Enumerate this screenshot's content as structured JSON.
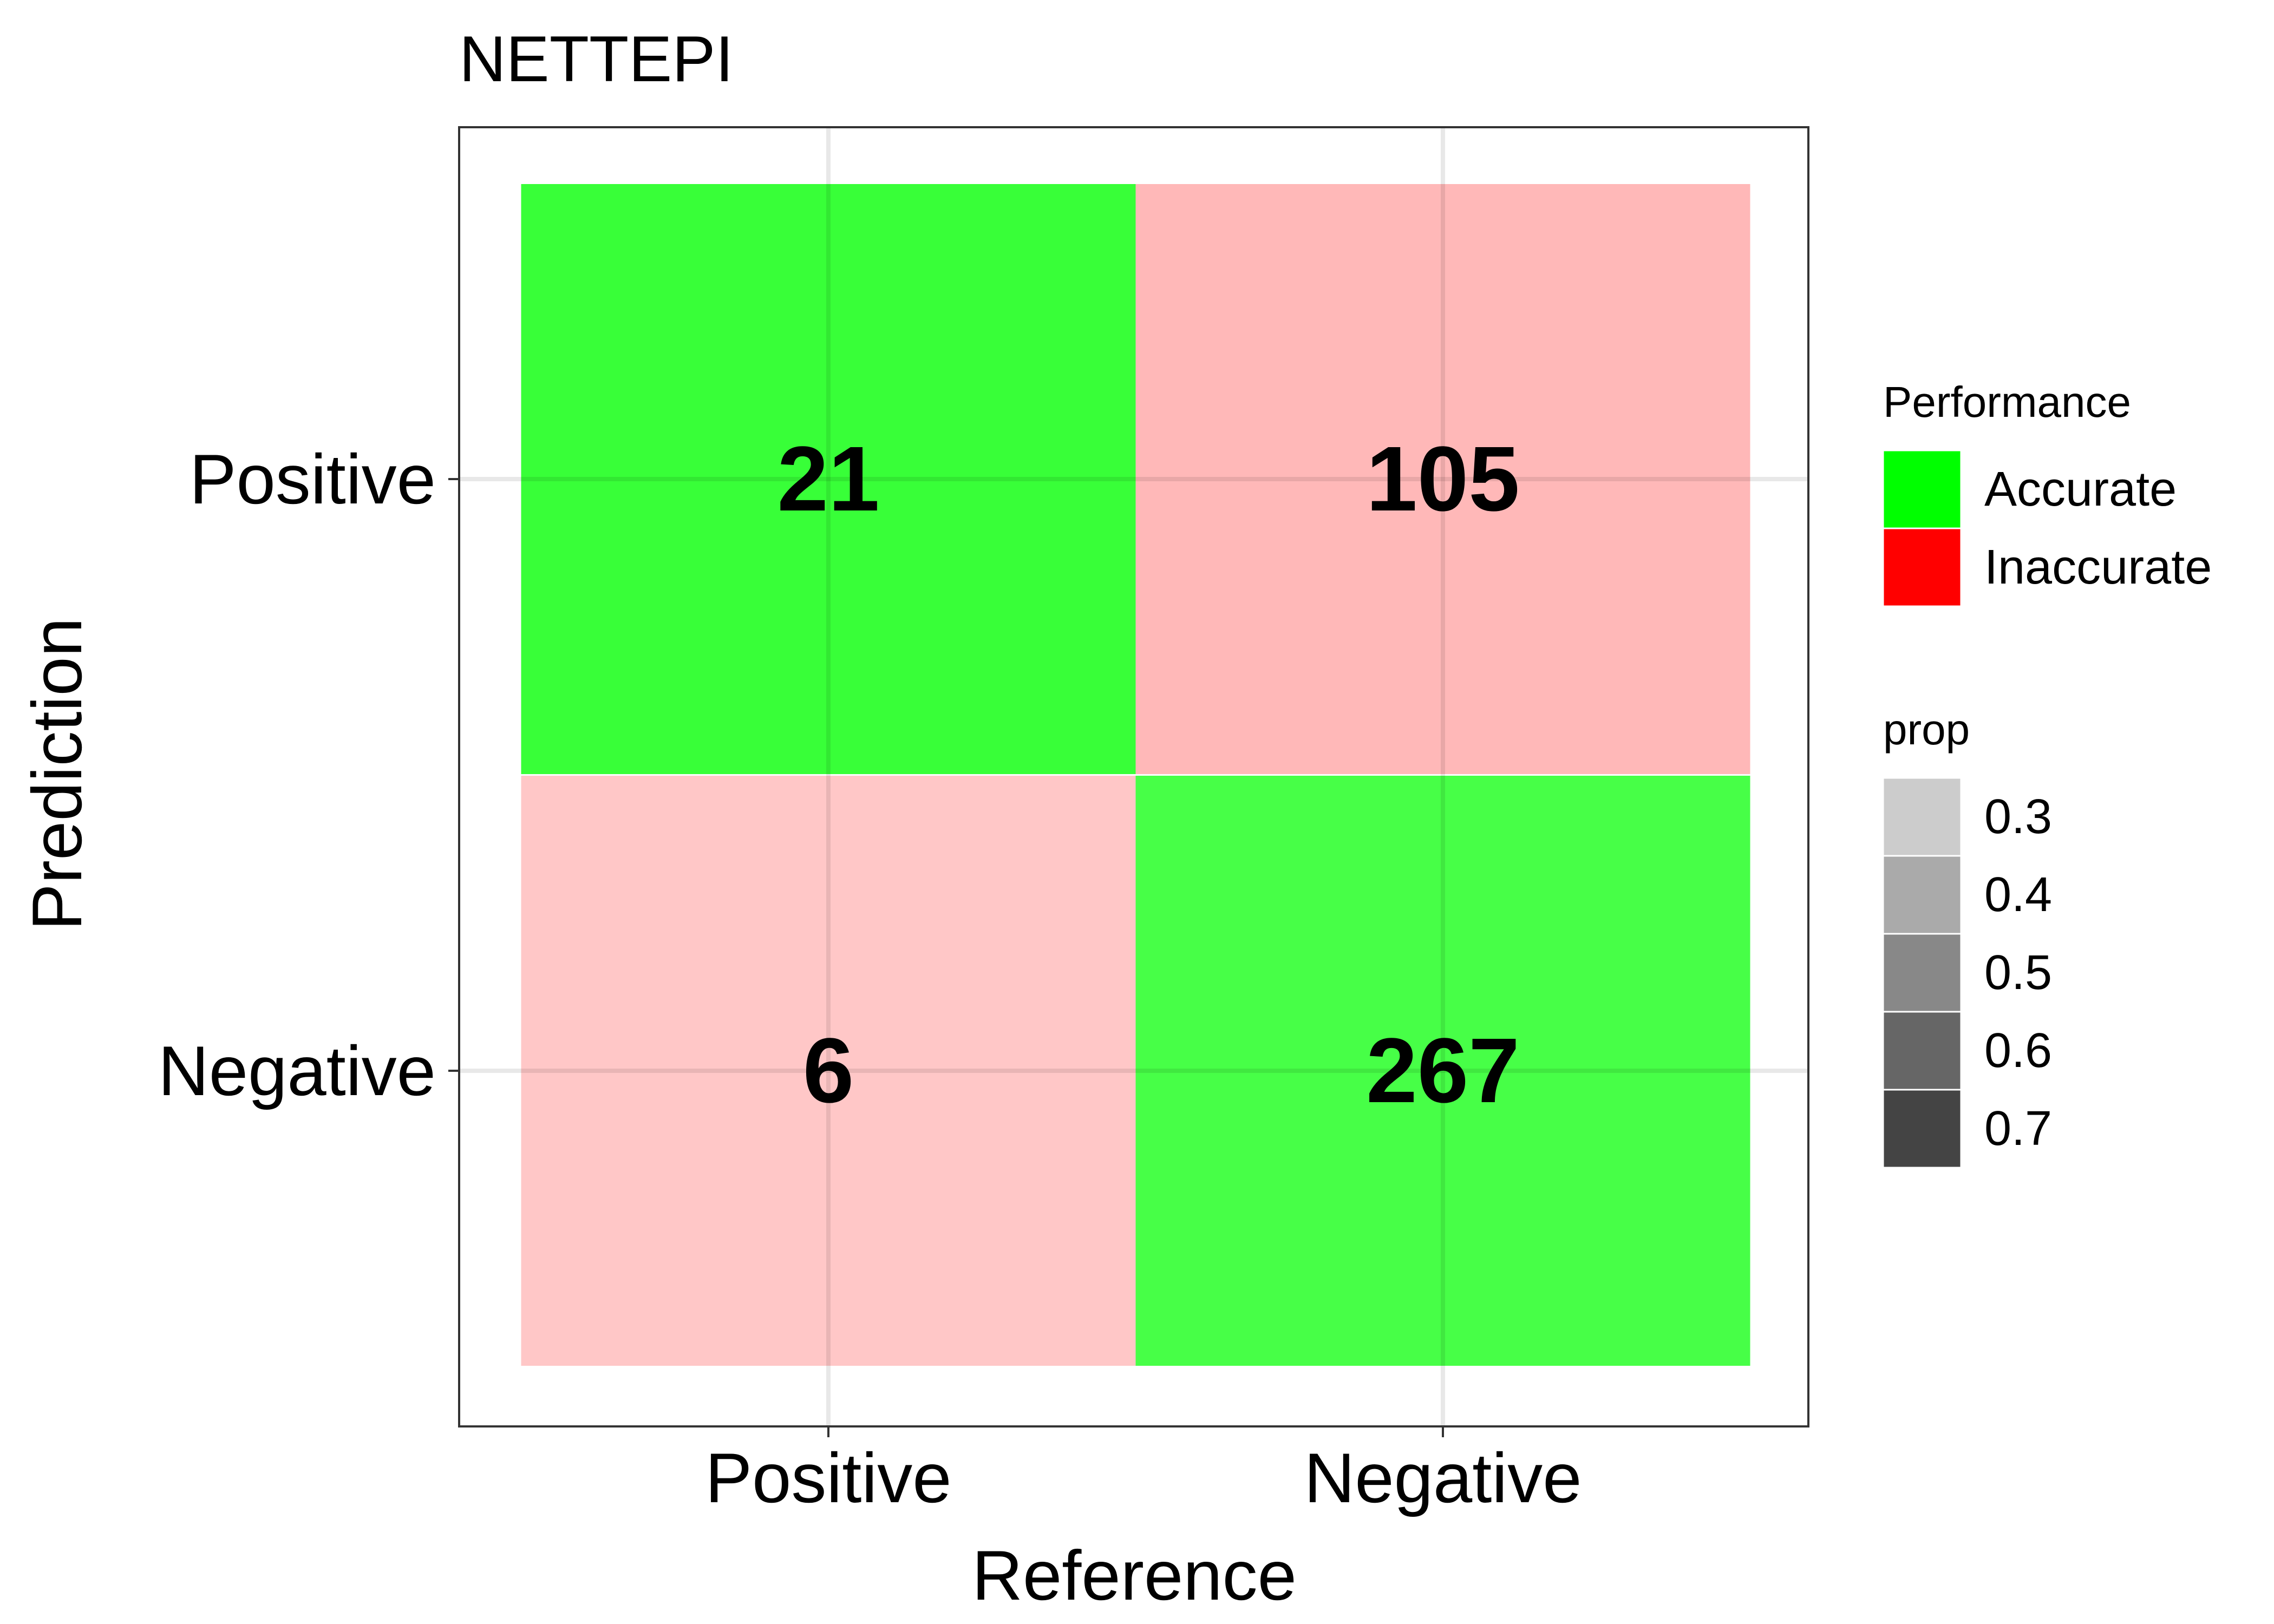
{
  "chart_data": {
    "type": "heatmap",
    "title": "NETTEPI",
    "xlabel": "Reference",
    "ylabel": "Prediction",
    "x_categories": [
      "Positive",
      "Negative"
    ],
    "y_categories": [
      "Positive",
      "Negative"
    ],
    "grid": true,
    "cells": [
      {
        "reference": "Positive",
        "prediction": "Positive",
        "count": 21,
        "performance": "Accurate",
        "prop": 0.78
      },
      {
        "reference": "Negative",
        "prediction": "Positive",
        "count": 105,
        "performance": "Inaccurate",
        "prop": 0.28
      },
      {
        "reference": "Positive",
        "prediction": "Negative",
        "count": 6,
        "performance": "Inaccurate",
        "prop": 0.22
      },
      {
        "reference": "Negative",
        "prediction": "Negative",
        "count": 267,
        "performance": "Accurate",
        "prop": 0.72
      }
    ],
    "legend": {
      "placement": "right",
      "performance": {
        "title": "Performance",
        "entries": [
          {
            "label": "Accurate",
            "color": "#00ff00"
          },
          {
            "label": "Inaccurate",
            "color": "#ff0000"
          }
        ]
      },
      "prop": {
        "title": "prop",
        "entries": [
          {
            "label": "0.3",
            "color": "#cccccc"
          },
          {
            "label": "0.4",
            "color": "#aaaaaa"
          },
          {
            "label": "0.5",
            "color": "#888888"
          },
          {
            "label": "0.6",
            "color": "#666666"
          },
          {
            "label": "0.7",
            "color": "#444444"
          }
        ]
      }
    }
  }
}
